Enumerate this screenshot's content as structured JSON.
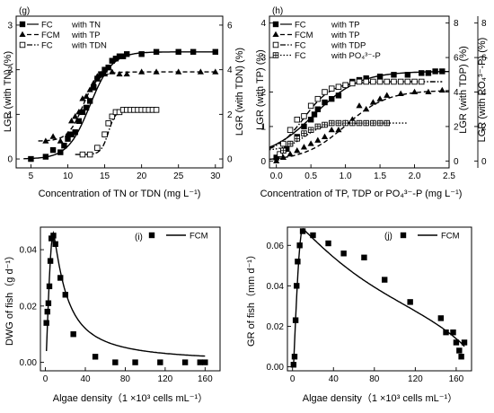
{
  "chart_data": [
    {
      "panel": "(g)",
      "type": "scatter",
      "xlabel": "Concentration of TN or TDN (mg L⁻¹)",
      "ylabel": "LGR (with TN) (%)",
      "y2label": "LGR (with TDN) (%)",
      "xlim": [
        3,
        31
      ],
      "ylim": [
        -0.2,
        3.2
      ],
      "y2lim": [
        -0.4,
        6.4
      ],
      "xticks": [
        5,
        10,
        15,
        20,
        25,
        30
      ],
      "yticks": [
        0,
        1,
        2,
        3
      ],
      "y2ticks": [
        0,
        2,
        4,
        6
      ],
      "legend": "top-left",
      "series": [
        {
          "name": "FC",
          "suffix": "with TN",
          "marker": "square-filled",
          "line": "solid",
          "axis": "left",
          "x": [
            5,
            7,
            8,
            9,
            9.5,
            10,
            10.5,
            11,
            11.5,
            12,
            12.5,
            13,
            13.5,
            14,
            14.5,
            15,
            15.5,
            16,
            16.5,
            17,
            17.5,
            18,
            20,
            22,
            25,
            27,
            30
          ],
          "y": [
            0,
            0.05,
            0.2,
            0.15,
            0.3,
            0.45,
            0.55,
            0.6,
            0.85,
            1.05,
            1.15,
            1.3,
            1.6,
            1.8,
            1.9,
            2.0,
            2.05,
            2.2,
            2.25,
            2.3,
            2.3,
            2.35,
            2.35,
            2.4,
            2.4,
            2.4,
            2.4
          ]
        },
        {
          "name": "FCM",
          "suffix": "with TP",
          "marker": "triangle-filled",
          "line": "dash",
          "axis": "left",
          "x": [
            7,
            8,
            9,
            10,
            10.5,
            11,
            11.5,
            12,
            12.5,
            13,
            13.5,
            14,
            14.5,
            15,
            16,
            17,
            18,
            20,
            22,
            25,
            28,
            30
          ],
          "y": [
            0.4,
            0.5,
            0.4,
            0.55,
            0.85,
            0.95,
            1.05,
            1.35,
            1.4,
            1.55,
            1.7,
            1.85,
            1.9,
            1.9,
            1.95,
            1.9,
            1.9,
            1.95,
            1.95,
            1.95,
            1.95,
            1.95
          ]
        },
        {
          "name": "FC",
          "suffix": "with TDN",
          "marker": "square-open",
          "line": "dashdot",
          "axis": "right",
          "x": [
            12,
            13,
            14,
            15,
            15.5,
            16,
            16.5,
            17,
            17.5,
            18,
            18.5,
            19,
            19.5,
            20,
            20.5,
            21,
            21.5,
            22
          ],
          "y": [
            0.2,
            0.2,
            0.5,
            1.1,
            1.6,
            1.9,
            2.1,
            2.1,
            2.2,
            2.2,
            2.2,
            2.2,
            2.2,
            2.2,
            2.2,
            2.2,
            2.2,
            2.2
          ]
        }
      ]
    },
    {
      "panel": "(h)",
      "type": "scatter",
      "xlabel": "Concentration of TP, TDP or PO₄³⁻-P (mg L⁻¹)",
      "ylabel": "LGR (with TP) (%)",
      "y2label": "LGR (with TDP) (%)",
      "y3label": "LGR (with PO₄³⁻-P) (%)",
      "xlim": [
        -0.1,
        2.5
      ],
      "ylim": [
        -0.2,
        4.2
      ],
      "y2lim": [
        -0.4,
        8.4
      ],
      "xticks": [
        0.0,
        0.5,
        1.0,
        1.5,
        2.0,
        2.5
      ],
      "yticks": [
        0,
        1,
        2,
        3,
        4
      ],
      "y2ticks": [
        0,
        2,
        4,
        6,
        8
      ],
      "y3ticks": [
        0,
        2,
        4,
        6,
        8
      ],
      "legend": "top-left",
      "series": [
        {
          "name": "FC",
          "suffix": "with TP",
          "marker": "square-filled",
          "line": "solid",
          "axis": "left",
          "x": [
            0.0,
            0.1,
            0.15,
            0.2,
            0.3,
            0.4,
            0.5,
            0.55,
            0.6,
            0.7,
            0.8,
            0.9,
            1.0,
            1.1,
            1.2,
            1.3,
            1.5,
            1.7,
            1.9,
            2.1,
            2.2,
            2.3,
            2.4
          ],
          "y": [
            0.1,
            0.3,
            0.35,
            0.5,
            0.7,
            1.0,
            1.2,
            1.35,
            1.5,
            1.7,
            1.8,
            1.9,
            2.2,
            2.3,
            2.35,
            2.4,
            2.45,
            2.5,
            2.5,
            2.55,
            2.55,
            2.6,
            2.6
          ]
        },
        {
          "name": "FCM",
          "suffix": "with TP",
          "marker": "triangle-filled",
          "line": "dash",
          "axis": "left",
          "x": [
            0.0,
            0.1,
            0.2,
            0.3,
            0.4,
            0.5,
            0.6,
            0.7,
            0.8,
            0.9,
            1.0,
            1.1,
            1.2,
            1.3,
            1.4,
            1.5,
            1.6,
            1.8,
            2.0,
            2.2,
            2.4
          ],
          "y": [
            0.0,
            0.1,
            0.2,
            0.3,
            0.4,
            0.5,
            0.6,
            0.7,
            0.9,
            0.9,
            1.1,
            1.2,
            1.6,
            1.5,
            1.7,
            1.8,
            1.9,
            1.95,
            2.0,
            2.0,
            2.05
          ]
        },
        {
          "name": "FC",
          "suffix": "with TDP",
          "marker": "square-open",
          "line": "dashdot",
          "axis": "right",
          "x": [
            0.05,
            0.1,
            0.2,
            0.3,
            0.4,
            0.5,
            0.6,
            0.7,
            0.8,
            0.9,
            1.0,
            1.1,
            1.2,
            1.3,
            1.4,
            1.5,
            1.6,
            1.7,
            1.8,
            1.9,
            2.0,
            2.1
          ],
          "y": [
            0.4,
            1.0,
            1.8,
            2.4,
            2.6,
            3.2,
            3.6,
            4.0,
            4.2,
            4.3,
            4.4,
            4.5,
            4.6,
            4.6,
            4.6,
            4.6,
            4.6,
            4.6,
            4.6,
            4.6,
            4.6,
            4.6
          ]
        },
        {
          "name": "FC",
          "suffix": "with PO₄³⁻-P",
          "marker": "square-crossed",
          "line": "dotted",
          "axis": "right",
          "x": [
            0.1,
            0.2,
            0.3,
            0.4,
            0.5,
            0.6,
            0.7,
            0.8,
            0.9,
            1.0,
            1.1,
            1.2,
            1.3,
            1.4,
            1.5,
            1.6
          ],
          "y": [
            0.6,
            1.0,
            1.3,
            1.6,
            1.8,
            2.0,
            2.1,
            2.2,
            2.2,
            2.2,
            2.2,
            2.2,
            2.2,
            2.2,
            2.2,
            2.2
          ]
        }
      ]
    },
    {
      "panel": "(i)",
      "type": "scatter",
      "xlabel": "Algae density（1 ×10³ cells mL⁻¹）",
      "ylabel": "DWG of fish（g d⁻¹）",
      "xlim": [
        -5,
        175
      ],
      "ylim": [
        -0.003,
        0.048
      ],
      "xticks": [
        0,
        40,
        80,
        120,
        160
      ],
      "yticks": [
        0.0,
        0.02,
        0.04
      ],
      "ytick_labels": [
        "0.00",
        "0.02",
        "0.04"
      ],
      "legend": "top-right",
      "series": [
        {
          "name": "FCM",
          "marker": "square-filled",
          "line": "solid",
          "x": [
            1,
            2,
            3,
            4,
            5,
            6,
            8,
            10,
            15,
            20,
            28,
            50,
            70,
            90,
            115,
            140,
            155,
            160
          ],
          "y": [
            0.014,
            0.018,
            0.021,
            0.027,
            0.036,
            0.044,
            0.045,
            0.042,
            0.03,
            0.024,
            0.01,
            0.002,
            0.0,
            0.0,
            0.0,
            0.0,
            0.0,
            0.0
          ]
        }
      ]
    },
    {
      "panel": "(j)",
      "type": "scatter",
      "xlabel": "Algae density（1 ×10³ cells mL⁻¹）",
      "ylabel": "GR of fish（mm d⁻¹）",
      "xlim": [
        -5,
        175
      ],
      "ylim": [
        -0.002,
        0.069
      ],
      "xticks": [
        0,
        40,
        80,
        120,
        160
      ],
      "yticks": [
        0.0,
        0.02,
        0.04,
        0.06
      ],
      "ytick_labels": [
        "0.00",
        "0.02",
        "0.04",
        "0.06"
      ],
      "legend": "top-right",
      "series": [
        {
          "name": "FCM",
          "marker": "square-filled",
          "line": "solid",
          "x": [
            1,
            2,
            3,
            4,
            5,
            7,
            10,
            20,
            35,
            50,
            70,
            90,
            115,
            145,
            150,
            157,
            160,
            163,
            165,
            168
          ],
          "y": [
            0.001,
            0.005,
            0.023,
            0.04,
            0.052,
            0.06,
            0.067,
            0.065,
            0.061,
            0.056,
            0.054,
            0.043,
            0.032,
            0.024,
            0.017,
            0.017,
            0.012,
            0.008,
            0.005,
            0.012
          ]
        }
      ]
    }
  ]
}
